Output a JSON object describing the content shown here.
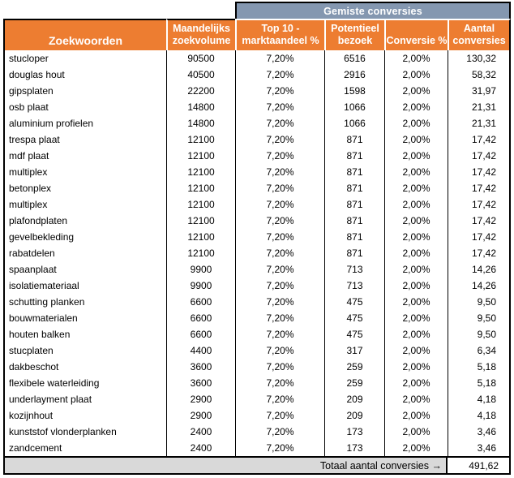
{
  "colors": {
    "header_orange": "#ED7D31",
    "banner_blue_gray": "#8497B0",
    "footer_gray": "#D9D9D9",
    "border": "#000000",
    "header_text": "#FFFFFF",
    "body_text": "#000000"
  },
  "chart_data": {
    "type": "table",
    "banner_title": "Gemiste conversies",
    "column_headers": [
      "Zoekwoorden",
      "Maandelijks\nzoekvolume",
      "Top 10 -\nmarktaandeel %",
      "Potentieel\nbezoek",
      "Conversie %",
      "Aantal\nconversies"
    ],
    "column_ids": [
      "keyword",
      "monthly-search-volume",
      "top10-market-share",
      "potential-visits",
      "conversion-rate",
      "conversions"
    ],
    "rows": [
      [
        "stucloper",
        "90500",
        "7,20%",
        "6516",
        "2,00%",
        "130,32"
      ],
      [
        "douglas hout",
        "40500",
        "7,20%",
        "2916",
        "2,00%",
        "58,32"
      ],
      [
        "gipsplaten",
        "22200",
        "7,20%",
        "1598",
        "2,00%",
        "31,97"
      ],
      [
        "osb plaat",
        "14800",
        "7,20%",
        "1066",
        "2,00%",
        "21,31"
      ],
      [
        "aluminium profielen",
        "14800",
        "7,20%",
        "1066",
        "2,00%",
        "21,31"
      ],
      [
        "trespa plaat",
        "12100",
        "7,20%",
        "871",
        "2,00%",
        "17,42"
      ],
      [
        "mdf plaat",
        "12100",
        "7,20%",
        "871",
        "2,00%",
        "17,42"
      ],
      [
        "multiplex",
        "12100",
        "7,20%",
        "871",
        "2,00%",
        "17,42"
      ],
      [
        "betonplex",
        "12100",
        "7,20%",
        "871",
        "2,00%",
        "17,42"
      ],
      [
        "multiplex",
        "12100",
        "7,20%",
        "871",
        "2,00%",
        "17,42"
      ],
      [
        "plafondplaten",
        "12100",
        "7,20%",
        "871",
        "2,00%",
        "17,42"
      ],
      [
        "gevelbekleding",
        "12100",
        "7,20%",
        "871",
        "2,00%",
        "17,42"
      ],
      [
        "rabatdelen",
        "12100",
        "7,20%",
        "871",
        "2,00%",
        "17,42"
      ],
      [
        "spaanplaat",
        "9900",
        "7,20%",
        "713",
        "2,00%",
        "14,26"
      ],
      [
        "isolatiemateriaal",
        "9900",
        "7,20%",
        "713",
        "2,00%",
        "14,26"
      ],
      [
        "schutting planken",
        "6600",
        "7,20%",
        "475",
        "2,00%",
        "9,50"
      ],
      [
        "bouwmaterialen",
        "6600",
        "7,20%",
        "475",
        "2,00%",
        "9,50"
      ],
      [
        "houten balken",
        "6600",
        "7,20%",
        "475",
        "2,00%",
        "9,50"
      ],
      [
        "stucplaten",
        "4400",
        "7,20%",
        "317",
        "2,00%",
        "6,34"
      ],
      [
        "dakbeschot",
        "3600",
        "7,20%",
        "259",
        "2,00%",
        "5,18"
      ],
      [
        "flexibele waterleiding",
        "3600",
        "7,20%",
        "259",
        "2,00%",
        "5,18"
      ],
      [
        "underlayment plaat",
        "2900",
        "7,20%",
        "209",
        "2,00%",
        "4,18"
      ],
      [
        "kozijnhout",
        "2900",
        "7,20%",
        "209",
        "2,00%",
        "4,18"
      ],
      [
        "kunststof vlonderplanken",
        "2400",
        "7,20%",
        "173",
        "2,00%",
        "3,46"
      ],
      [
        "zandcement",
        "2400",
        "7,20%",
        "173",
        "2,00%",
        "3,46"
      ]
    ],
    "footer_label": "Totaal aantal conversies →",
    "footer_total": "491,62"
  }
}
